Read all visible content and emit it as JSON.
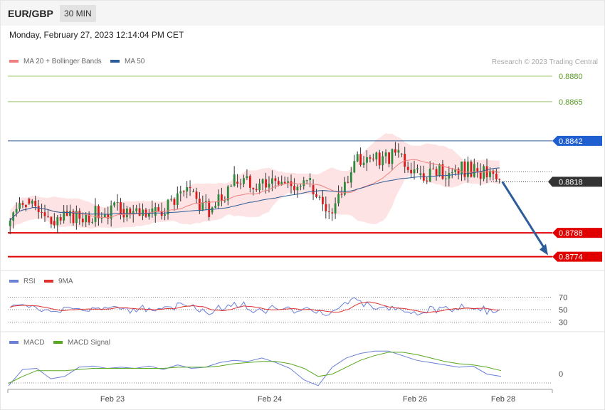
{
  "header": {
    "pair": "EUR/GBP",
    "timeframe": "30 MIN",
    "datetime": "Monday, February 27, 2023 12:14:04 PM CET"
  },
  "legend": {
    "ma20": "MA 20 + Bollinger Bands",
    "ma50": "MA 50",
    "rsi": "RSI",
    "rsi_ma": "9MA",
    "macd": "MACD",
    "macd_signal": "MACD Signal",
    "credit": "Research © 2023 Trading Central"
  },
  "colors": {
    "ma20": "#f08080",
    "ma50": "#2c5d98",
    "bb_fill": "#fde3e3",
    "bull": "#2c8a3c",
    "bear": "#dd1a1a",
    "target": "#5a9a28",
    "pivot": "#1f5fd0",
    "support": "#e00000",
    "rsi": "#6a7fd8",
    "rsi_ma": "#e03030",
    "macd": "#6a7fd8",
    "macd_signal": "#58a822",
    "arrow": "#2c5d98"
  },
  "chart_data": [
    {
      "type": "candlestick",
      "panel": "price",
      "instrument": "EUR/GBP",
      "timeframe": "30 MIN",
      "y_range": [
        0.8768,
        0.8885
      ],
      "x_labels": [
        "Feb 23",
        "Feb 24",
        "Feb 26",
        "Feb 28"
      ],
      "price_labels": [
        {
          "value": "0.8880",
          "kind": "target"
        },
        {
          "value": "0.8865",
          "kind": "target"
        },
        {
          "value": "0.8842",
          "kind": "pivot"
        },
        {
          "value": "0.8818",
          "kind": "current"
        },
        {
          "value": "0.8788",
          "kind": "support"
        },
        {
          "value": "0.8774",
          "kind": "support"
        }
      ],
      "segments": [
        {
          "n": 6,
          "o": 0.8792,
          "c": 0.8808,
          "seed": 1
        },
        {
          "n": 8,
          "o": 0.8808,
          "c": 0.8795,
          "seed": 2
        },
        {
          "n": 22,
          "o": 0.8795,
          "c": 0.8802,
          "seed": 3
        },
        {
          "n": 10,
          "o": 0.8802,
          "c": 0.8798,
          "seed": 4
        },
        {
          "n": 12,
          "o": 0.8798,
          "c": 0.8812,
          "seed": 5
        },
        {
          "n": 6,
          "o": 0.8812,
          "c": 0.88,
          "seed": 6
        },
        {
          "n": 8,
          "o": 0.88,
          "c": 0.8818,
          "seed": 7
        },
        {
          "n": 24,
          "o": 0.8818,
          "c": 0.8816,
          "seed": 8
        },
        {
          "n": 6,
          "o": 0.8816,
          "c": 0.88,
          "seed": 9
        },
        {
          "n": 8,
          "o": 0.88,
          "c": 0.883,
          "seed": 10
        },
        {
          "n": 14,
          "o": 0.883,
          "c": 0.8834,
          "seed": 11
        },
        {
          "n": 6,
          "o": 0.8834,
          "c": 0.8822,
          "seed": 12
        },
        {
          "n": 18,
          "o": 0.8822,
          "c": 0.8826,
          "seed": 13
        },
        {
          "n": 8,
          "o": 0.8826,
          "c": 0.8818,
          "seed": 14
        }
      ],
      "projection": {
        "from": 0.8818,
        "to": 0.8774
      }
    },
    {
      "type": "line",
      "panel": "rsi",
      "levels": [
        70,
        50,
        30
      ],
      "series": [
        {
          "name": "RSI"
        },
        {
          "name": "9MA"
        }
      ]
    },
    {
      "type": "line",
      "panel": "macd",
      "levels": [
        0
      ],
      "series": [
        {
          "name": "MACD",
          "points": [
            -0.0012,
            0.0002,
            0.0003,
            -0.0006,
            -0.0004,
            0.0004,
            0.0005,
            0.0003,
            0.0004,
            0.0003,
            0.0005,
            0.0002,
            0.0006,
            0.0003,
            0.0004,
            0.0008,
            0.001,
            0.0009,
            0.0012,
            0.0008,
            0.0003,
            -0.0007,
            -0.0012,
            0.0004,
            0.0012,
            0.0016,
            0.0018,
            0.0018,
            0.0014,
            0.001,
            0.0008,
            0.0006,
            0.0004,
            0.0005,
            -0.0002,
            -0.0004
          ]
        },
        {
          "name": "MACD Signal",
          "points": [
            -0.001,
            -0.0004,
            0.0001,
            0.0001,
            0.0001,
            0.0002,
            0.0003,
            0.0003,
            0.0003,
            0.0003,
            0.0003,
            0.0003,
            0.0004,
            0.0004,
            0.0004,
            0.0005,
            0.0007,
            0.0008,
            0.0009,
            0.0009,
            0.0007,
            0.0003,
            -0.0004,
            -0.0002,
            0.0004,
            0.001,
            0.0014,
            0.0017,
            0.0017,
            0.0015,
            0.0012,
            0.0009,
            0.0007,
            0.0006,
            0.0004,
            0.0001
          ]
        }
      ]
    }
  ]
}
